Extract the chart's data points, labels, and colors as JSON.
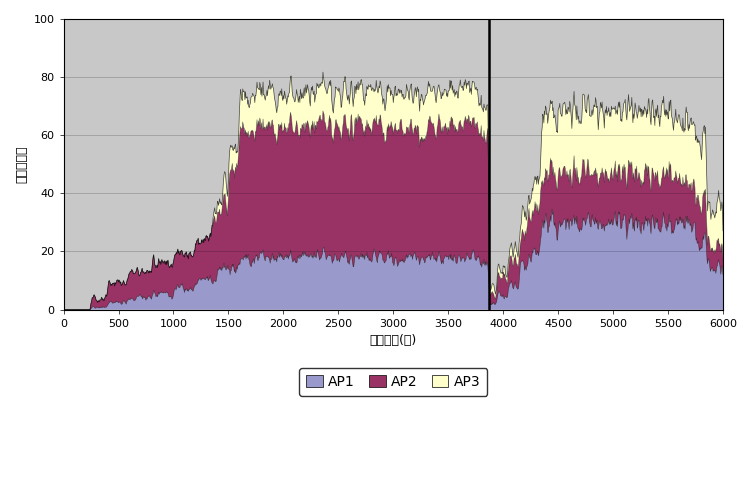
{
  "title": "",
  "xlabel": "共通時刻(秒)",
  "ylabel": "接続端末数",
  "xlim": [
    0,
    6000
  ],
  "ylim": [
    0,
    100
  ],
  "xticks": [
    0,
    500,
    1000,
    1500,
    2000,
    2500,
    3000,
    3500,
    4000,
    4500,
    5000,
    5500,
    6000
  ],
  "yticks": [
    0,
    20,
    40,
    60,
    80,
    100
  ],
  "ap1_color": "#9999cc",
  "ap2_color": "#993366",
  "ap3_color": "#ffffcc",
  "plot_bg": "#c8c8c8",
  "fig_bg": "#ffffff",
  "legend_labels": [
    "AP1",
    "AP2",
    "AP3"
  ],
  "vline_x": 3870,
  "vline_color": "#000000",
  "grid_color": "#000000",
  "grid_alpha": 0.25
}
